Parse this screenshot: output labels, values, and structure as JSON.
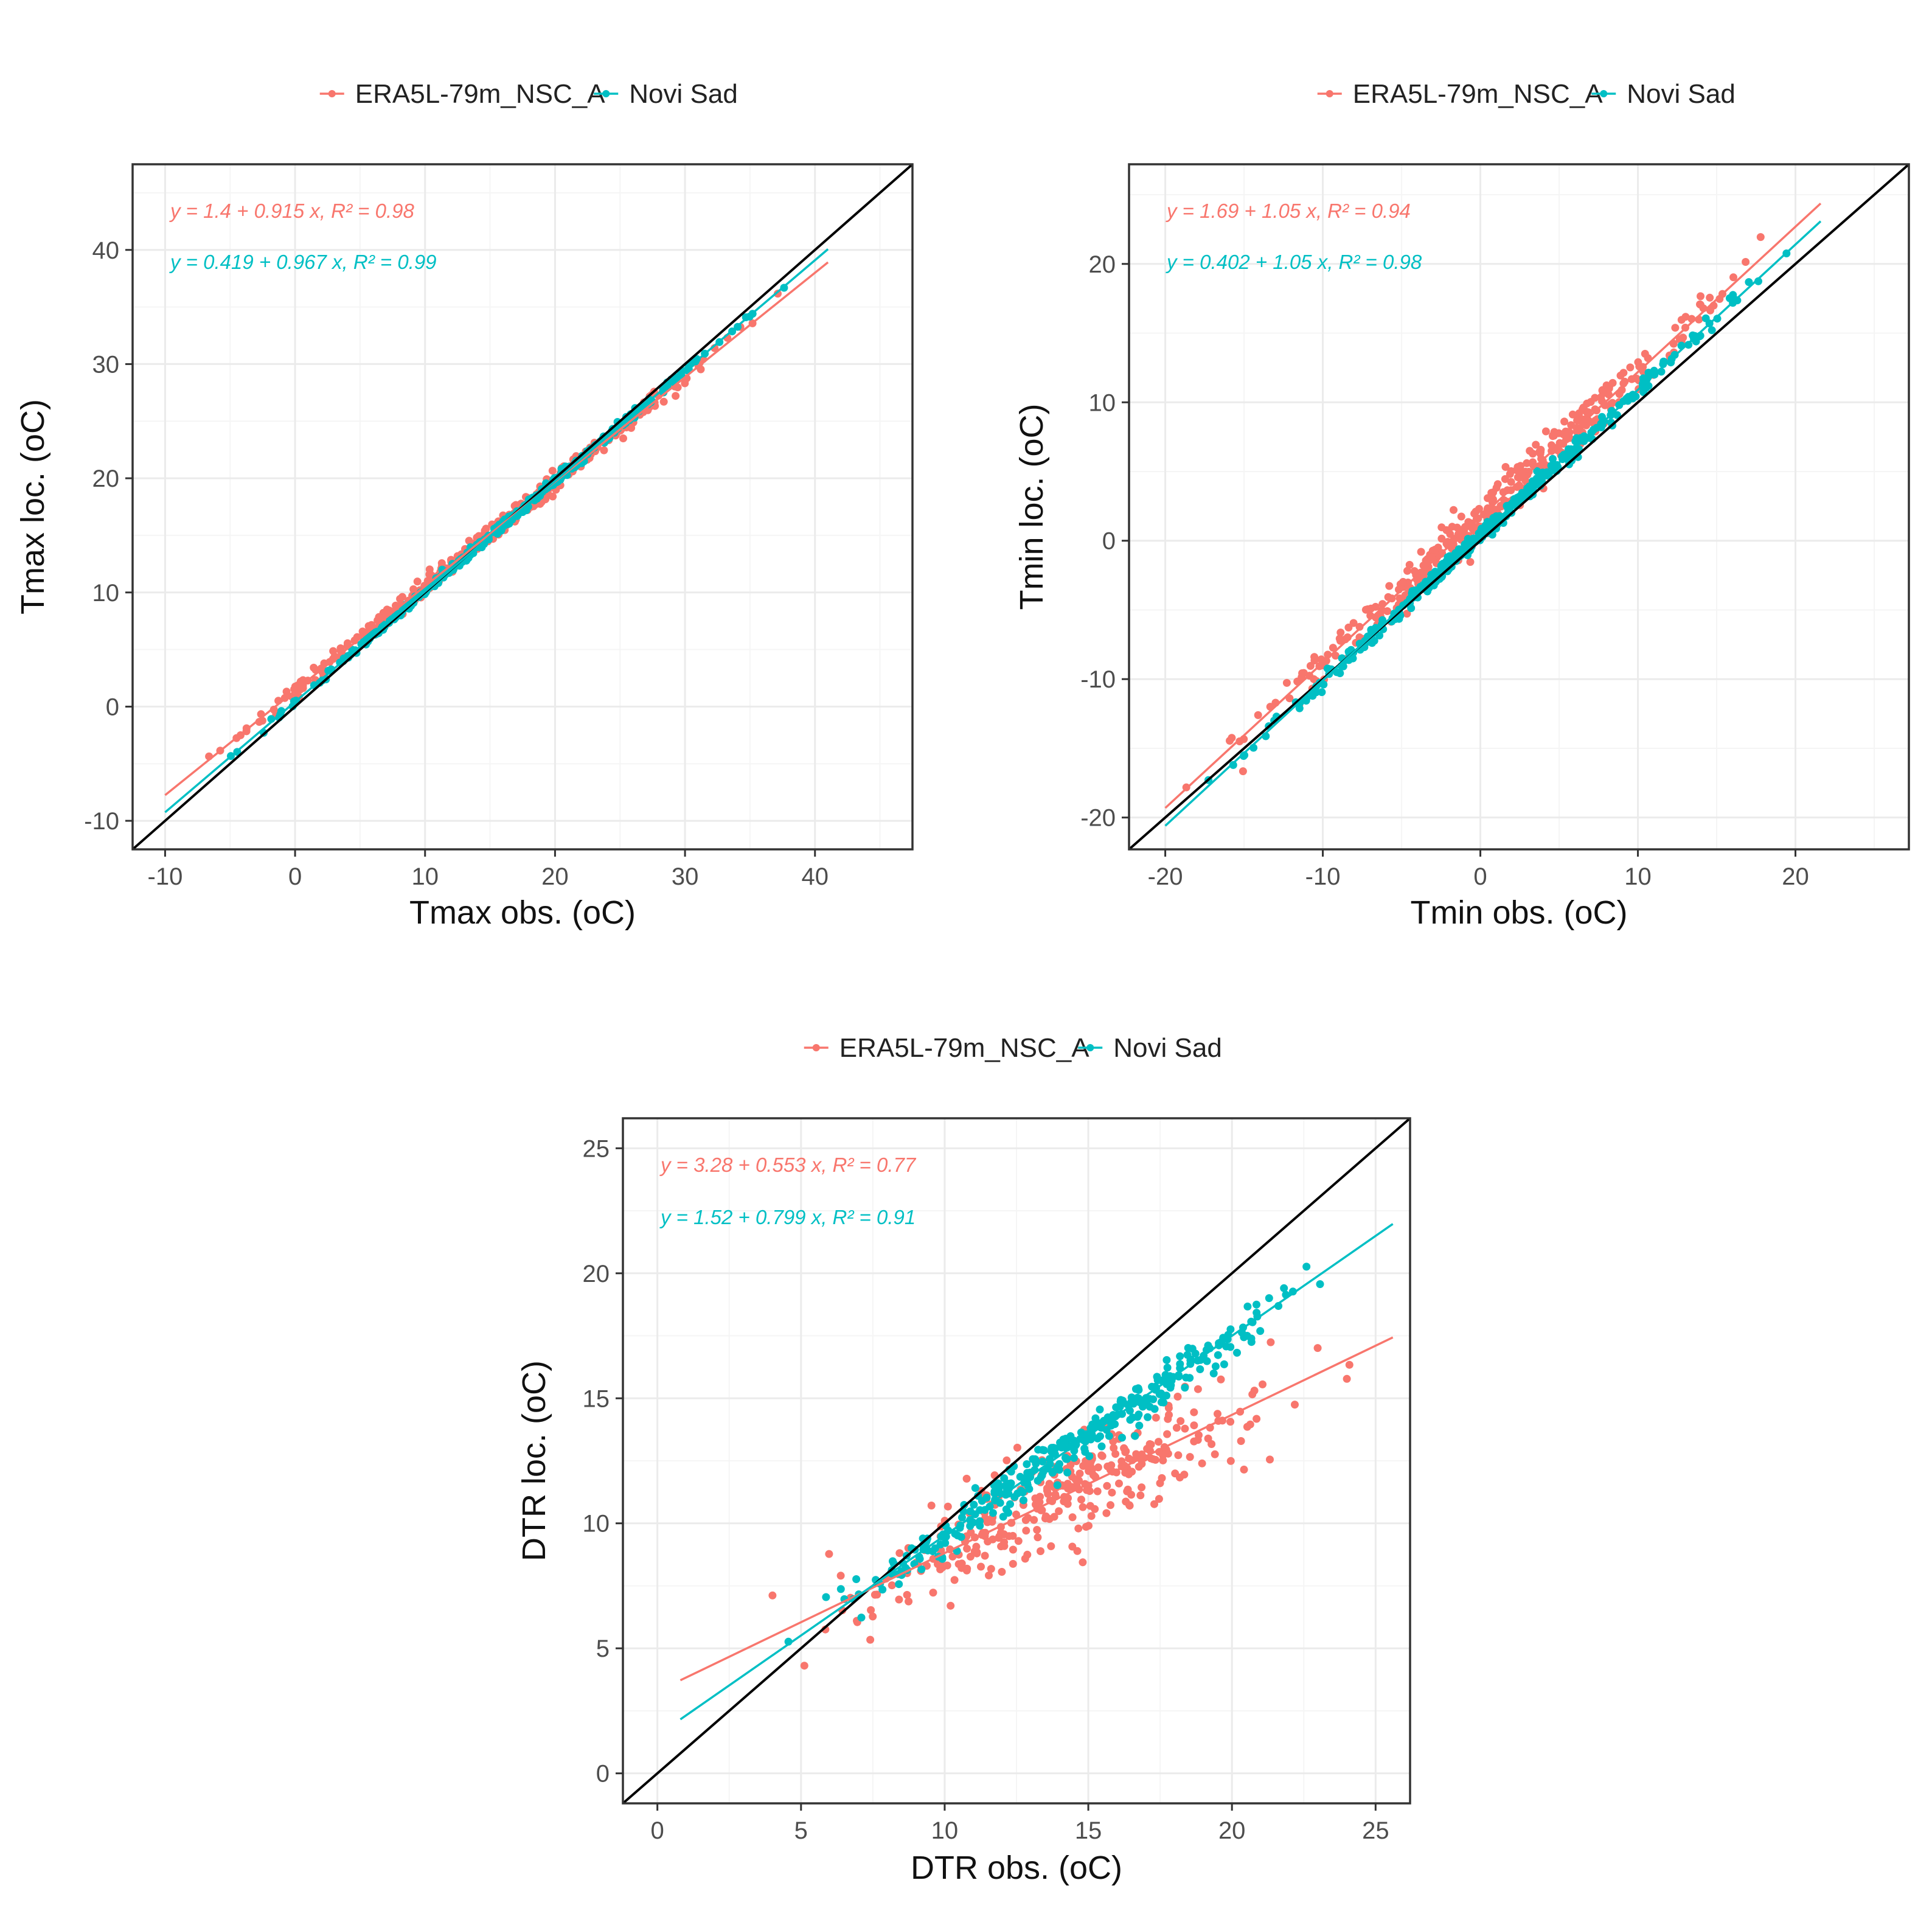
{
  "colors": {
    "era5l": "#F8766D",
    "novisad": "#00BFC4",
    "identity": "#000000",
    "grid_major": "#EBEBEB",
    "grid_minor": "#F5F5F5",
    "panel_border": "#333333"
  },
  "chart_data": [
    {
      "id": "tmax",
      "type": "scatter",
      "xlabel": "Tmax obs. (oC)",
      "ylabel": "Tmax loc. (oC)",
      "xlim": [
        -12.5,
        47.5
      ],
      "ylim": [
        -12.5,
        47.5
      ],
      "xticks": [
        -10,
        0,
        10,
        20,
        30,
        40
      ],
      "yticks": [
        -10,
        0,
        10,
        20,
        30,
        40
      ],
      "x_range": [
        -10,
        41
      ],
      "legend": [
        "ERA5L-79m_NSC_A",
        "Novi Sad"
      ],
      "legend_position": "top",
      "identity_line": true,
      "series": [
        {
          "name": "ERA5L-79m_NSC_A",
          "intercept": 1.4,
          "slope": 0.915,
          "r2": 0.98,
          "equation_label": "y = 1.4 + 0.915 x, R² = 0.98"
        },
        {
          "name": "Novi Sad",
          "intercept": 0.419,
          "slope": 0.967,
          "r2": 0.99,
          "equation_label": "y = 0.419 + 0.967 x, R² = 0.99"
        }
      ]
    },
    {
      "id": "tmin",
      "type": "scatter",
      "xlabel": "Tmin obs. (oC)",
      "ylabel": "Tmin loc. (oC)",
      "xlim": [
        -22.3,
        27.2
      ],
      "ylim": [
        -22.3,
        27.2
      ],
      "xticks": [
        -20,
        -10,
        0,
        10,
        20
      ],
      "yticks": [
        -20,
        -10,
        0,
        10,
        20
      ],
      "x_range": [
        -20,
        21.6
      ],
      "legend": [
        "ERA5L-79m_NSC_A",
        "Novi Sad"
      ],
      "legend_position": "top",
      "identity_line": true,
      "series": [
        {
          "name": "ERA5L-79m_NSC_A",
          "intercept": 1.69,
          "slope": 1.05,
          "r2": 0.94,
          "equation_label": "y = 1.69 + 1.05 x, R² = 0.94"
        },
        {
          "name": "Novi Sad",
          "intercept": 0.402,
          "slope": 1.05,
          "r2": 0.98,
          "equation_label": "y = 0.402 + 1.05 x, R² = 0.98"
        }
      ]
    },
    {
      "id": "dtr",
      "type": "scatter",
      "xlabel": "DTR obs. (oC)",
      "ylabel": "DTR loc. (oC)",
      "xlim": [
        -1.2,
        26.2
      ],
      "ylim": [
        -1.2,
        26.2
      ],
      "xticks": [
        0,
        5,
        10,
        15,
        20,
        25
      ],
      "yticks": [
        0,
        5,
        10,
        15,
        20,
        25
      ],
      "x_range": [
        0.8,
        25.6
      ],
      "legend": [
        "ERA5L-79m_NSC_A",
        "Novi Sad"
      ],
      "legend_position": "top",
      "identity_line": true,
      "series": [
        {
          "name": "ERA5L-79m_NSC_A",
          "intercept": 3.28,
          "slope": 0.553,
          "r2": 0.77,
          "equation_label": "y = 3.28 + 0.553 x, R² = 0.77"
        },
        {
          "name": "Novi Sad",
          "intercept": 1.52,
          "slope": 0.799,
          "r2": 0.91,
          "equation_label": "y = 1.52 + 0.799 x, R² = 0.91"
        }
      ]
    }
  ]
}
